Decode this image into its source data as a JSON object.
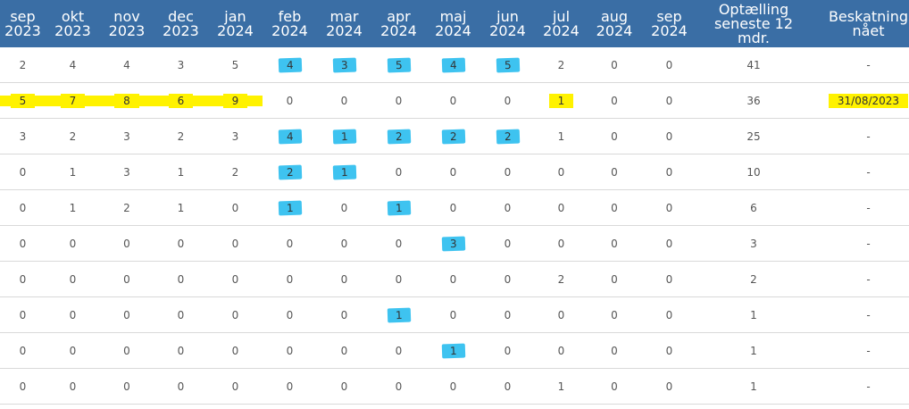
{
  "table": {
    "headers": [
      [
        "sep",
        "2023"
      ],
      [
        "okt",
        "2023"
      ],
      [
        "nov",
        "2023"
      ],
      [
        "dec",
        "2023"
      ],
      [
        "jan",
        "2024"
      ],
      [
        "feb",
        "2024"
      ],
      [
        "mar",
        "2024"
      ],
      [
        "apr",
        "2024"
      ],
      [
        "maj",
        "2024"
      ],
      [
        "jun",
        "2024"
      ],
      [
        "jul",
        "2024"
      ],
      [
        "aug",
        "2024"
      ],
      [
        "sep",
        "2024"
      ],
      [
        "Optælling",
        "seneste 12",
        "mdr."
      ],
      [
        "Beskatning",
        "nået"
      ]
    ],
    "rows": [
      [
        "2",
        "4",
        "4",
        "3",
        "5",
        "4",
        "3",
        "5",
        "4",
        "5",
        "2",
        "0",
        "0",
        "41",
        "-"
      ],
      [
        "5",
        "7",
        "8",
        "6",
        "9",
        "0",
        "0",
        "0",
        "0",
        "0",
        "1",
        "0",
        "0",
        "36",
        "31/08/2023"
      ],
      [
        "3",
        "2",
        "3",
        "2",
        "3",
        "4",
        "1",
        "2",
        "2",
        "2",
        "1",
        "0",
        "0",
        "25",
        "-"
      ],
      [
        "0",
        "1",
        "3",
        "1",
        "2",
        "2",
        "1",
        "0",
        "0",
        "0",
        "0",
        "0",
        "0",
        "10",
        "-"
      ],
      [
        "0",
        "1",
        "2",
        "1",
        "0",
        "1",
        "0",
        "1",
        "0",
        "0",
        "0",
        "0",
        "0",
        "6",
        "-"
      ],
      [
        "0",
        "0",
        "0",
        "0",
        "0",
        "0",
        "0",
        "0",
        "3",
        "0",
        "0",
        "0",
        "0",
        "3",
        "-"
      ],
      [
        "0",
        "0",
        "0",
        "0",
        "0",
        "0",
        "0",
        "0",
        "0",
        "0",
        "2",
        "0",
        "0",
        "2",
        "-"
      ],
      [
        "0",
        "0",
        "0",
        "0",
        "0",
        "0",
        "0",
        "1",
        "0",
        "0",
        "0",
        "0",
        "0",
        "1",
        "-"
      ],
      [
        "0",
        "0",
        "0",
        "0",
        "0",
        "0",
        "0",
        "0",
        "1",
        "0",
        "0",
        "0",
        "0",
        "1",
        "-"
      ],
      [
        "0",
        "0",
        "0",
        "0",
        "0",
        "0",
        "0",
        "0",
        "0",
        "0",
        "1",
        "0",
        "0",
        "1",
        "-"
      ]
    ],
    "highlights_blue": [
      [
        0,
        5
      ],
      [
        0,
        6
      ],
      [
        0,
        7
      ],
      [
        0,
        8
      ],
      [
        0,
        9
      ],
      [
        2,
        5
      ],
      [
        2,
        6
      ],
      [
        2,
        7
      ],
      [
        2,
        8
      ],
      [
        2,
        9
      ],
      [
        3,
        5
      ],
      [
        3,
        6
      ],
      [
        4,
        5
      ],
      [
        4,
        7
      ],
      [
        5,
        8
      ],
      [
        7,
        7
      ],
      [
        8,
        8
      ]
    ],
    "highlights_yellow": [
      [
        1,
        0
      ],
      [
        1,
        1
      ],
      [
        1,
        2
      ],
      [
        1,
        3
      ],
      [
        1,
        4
      ],
      [
        1,
        10
      ],
      [
        1,
        14
      ]
    ],
    "colors": {
      "header_bg": "#3a6ea5",
      "marker_blue": "#3ec3f0",
      "marker_yellow": "#fff200",
      "text": "#555555"
    }
  }
}
